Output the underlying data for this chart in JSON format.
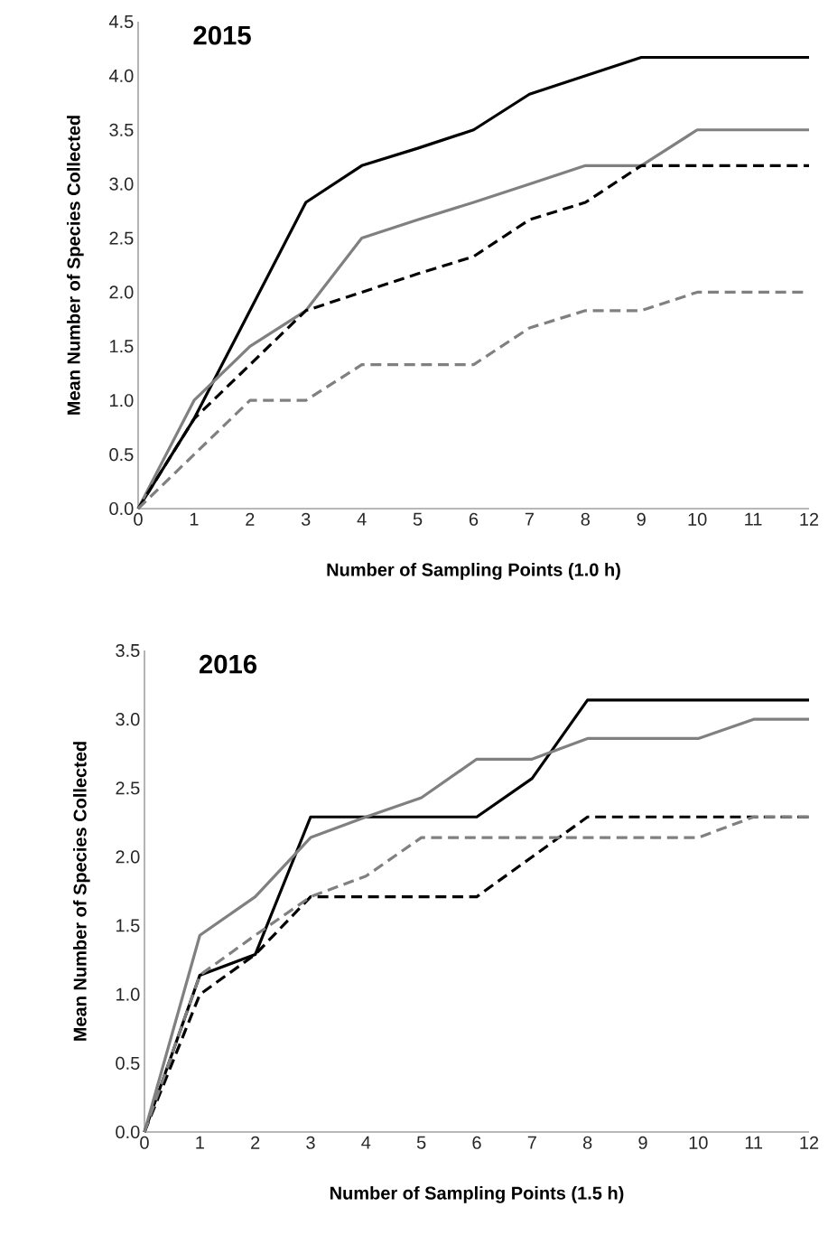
{
  "chart_data": [
    {
      "type": "line",
      "title": "2015",
      "xlabel": "Number of Sampling Points (1.0 h)",
      "ylabel": "Mean Number of Species Collected",
      "x": [
        0,
        1,
        2,
        3,
        4,
        5,
        6,
        7,
        8,
        9,
        10,
        11,
        12
      ],
      "xlim": [
        0,
        12
      ],
      "xticks": [
        0,
        1,
        2,
        3,
        4,
        5,
        6,
        7,
        8,
        9,
        10,
        11,
        12
      ],
      "ylim": [
        0,
        4.5
      ],
      "yticks": [
        {
          "value": 0,
          "label": "0.0"
        },
        {
          "value": 0.5,
          "label": "0.5"
        },
        {
          "value": 1,
          "label": "1.0"
        },
        {
          "value": 1.5,
          "label": "1.5"
        },
        {
          "value": 2,
          "label": "2.0"
        },
        {
          "value": 2.5,
          "label": "2.5"
        },
        {
          "value": 3,
          "label": "3.0"
        },
        {
          "value": 3.5,
          "label": "3.5"
        },
        {
          "value": 4,
          "label": "4.0"
        },
        {
          "value": 4.5,
          "label": "4.5"
        }
      ],
      "marker": "none",
      "series": [
        {
          "color": "#000000",
          "line_style": "solid",
          "values": [
            0,
            0.83,
            1.83,
            2.83,
            3.17,
            3.33,
            3.5,
            3.83,
            4.0,
            4.17,
            4.17,
            4.17,
            4.17
          ]
        },
        {
          "color": "#808080",
          "line_style": "solid",
          "values": [
            0,
            1.0,
            1.5,
            1.83,
            2.5,
            2.67,
            2.83,
            3.0,
            3.17,
            3.17,
            3.5,
            3.5,
            3.5
          ]
        },
        {
          "color": "#000000",
          "line_style": "dashed",
          "values": [
            0,
            0.83,
            1.33,
            1.83,
            2.0,
            2.17,
            2.33,
            2.67,
            2.83,
            3.17,
            3.17,
            3.17,
            3.17
          ]
        },
        {
          "color": "#808080",
          "line_style": "dashed",
          "values": [
            0,
            0.5,
            1.0,
            1.0,
            1.33,
            1.33,
            1.33,
            1.67,
            1.83,
            1.83,
            2.0,
            2.0,
            2.0
          ]
        }
      ]
    },
    {
      "type": "line",
      "title": "2016",
      "xlabel": "Number of Sampling Points (1.5 h)",
      "ylabel": "Mean Number of Species Collected",
      "x": [
        0,
        1,
        2,
        3,
        4,
        5,
        6,
        7,
        8,
        9,
        10,
        11,
        12
      ],
      "xlim": [
        0,
        12
      ],
      "xticks": [
        0,
        1,
        2,
        3,
        4,
        5,
        6,
        7,
        8,
        9,
        10,
        11,
        12
      ],
      "ylim": [
        0,
        3.5
      ],
      "yticks": [
        {
          "value": 0,
          "label": "0.0"
        },
        {
          "value": 0.5,
          "label": "0.5"
        },
        {
          "value": 1,
          "label": "1.0"
        },
        {
          "value": 1.5,
          "label": "1.5"
        },
        {
          "value": 2,
          "label": "2.0"
        },
        {
          "value": 2.5,
          "label": "2.5"
        },
        {
          "value": 3,
          "label": "3.0"
        },
        {
          "value": 3.5,
          "label": "3.5"
        }
      ],
      "marker": "none",
      "series": [
        {
          "color": "#000000",
          "line_style": "solid",
          "values": [
            0,
            1.14,
            1.29,
            2.29,
            2.29,
            2.29,
            2.29,
            2.57,
            3.14,
            3.14,
            3.14,
            3.14,
            3.14
          ]
        },
        {
          "color": "#808080",
          "line_style": "solid",
          "values": [
            0,
            1.43,
            1.71,
            2.14,
            2.29,
            2.43,
            2.71,
            2.71,
            2.86,
            2.86,
            2.86,
            3.0,
            3.0
          ]
        },
        {
          "color": "#000000",
          "line_style": "dashed",
          "values": [
            0,
            1.0,
            1.29,
            1.71,
            1.71,
            1.71,
            1.71,
            2.0,
            2.29,
            2.29,
            2.29,
            2.29,
            2.29
          ]
        },
        {
          "color": "#808080",
          "line_style": "dashed",
          "values": [
            0,
            1.14,
            1.43,
            1.71,
            1.86,
            2.14,
            2.14,
            2.14,
            2.14,
            2.14,
            2.14,
            2.29,
            2.29
          ]
        }
      ]
    }
  ]
}
